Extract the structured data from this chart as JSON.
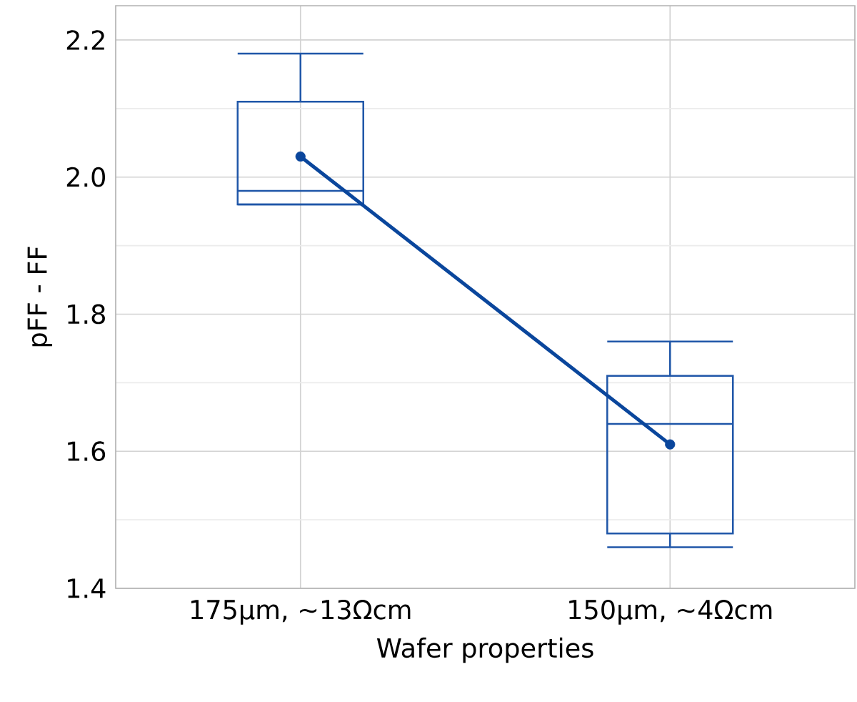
{
  "chart_data": {
    "type": "box",
    "xlabel": "Wafer properties",
    "ylabel": "pFF - FF",
    "categories": [
      "175µm, ~13Ωcm",
      "150µm, ~4Ωcm"
    ],
    "ylim": [
      1.4,
      2.25
    ],
    "yticks": [
      1.4,
      {
        "value": 1.5,
        "label": null
      },
      1.6,
      {
        "value": 1.7,
        "label": null
      },
      1.8,
      {
        "value": 1.9,
        "label": null
      },
      {
        "value": 2,
        "label": "2.0"
      },
      {
        "value": 2.1,
        "label": null
      },
      2.2
    ],
    "grid": true,
    "series": [
      {
        "color": "#1f56a8",
        "boxes": [
          {
            "low": 1.96,
            "q1": 1.96,
            "median": 1.98,
            "q3": 2.11,
            "high": 2.18
          },
          {
            "low": 1.46,
            "q1": 1.48,
            "median": 1.64,
            "q3": 1.71,
            "high": 1.76
          }
        ]
      },
      {
        "type": "line",
        "color": "#0a469c",
        "values": [
          2.03,
          1.61
        ],
        "marker": "circle"
      }
    ]
  }
}
